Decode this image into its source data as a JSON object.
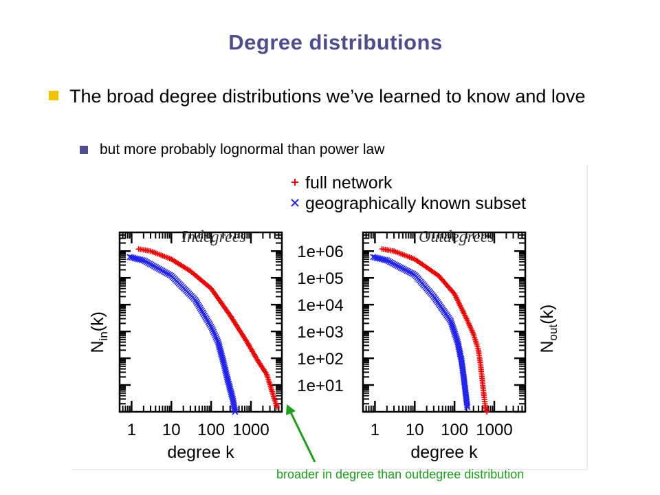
{
  "slide": {
    "title": "Degree distributions",
    "bullets": [
      {
        "level": 1,
        "text": "The broad degree distributions we’ve learned to know and love"
      },
      {
        "level": 2,
        "text": "but more probably lognormal than power law"
      }
    ],
    "annotation": "broader in degree than outdegree distribution",
    "colors": {
      "title": "#4d4d8e",
      "bullet1": "#f2c300",
      "bullet2": "#4d4d8e",
      "annotation": "#1aa01a"
    }
  },
  "chart_data": [
    {
      "type": "scatter",
      "title": "Indegrees",
      "xlabel": "degree k",
      "ylabel": "N",
      "ylabel_sub": "in",
      "ylabel_suffix": "(k)",
      "xscale": "log",
      "yscale": "log",
      "xlim": [
        0.5,
        6000
      ],
      "ylim": [
        1,
        5000000
      ],
      "xticks": [
        1,
        10,
        100,
        1000
      ],
      "xtick_labels": [
        "1",
        "10",
        "100",
        "1000"
      ],
      "yticks": [
        10,
        100,
        1000,
        10000,
        100000,
        1000000
      ],
      "ytick_labels": [
        "1e+01",
        "1e+02",
        "1e+03",
        "1e+04",
        "1e+05",
        "1e+06"
      ],
      "legend": "top",
      "series": [
        {
          "name": "full network",
          "marker": "+",
          "color": "#ee0000",
          "points": [
            [
              1.5,
              1200000
            ],
            [
              3,
              1000000
            ],
            [
              10,
              500000
            ],
            [
              30,
              180000
            ],
            [
              100,
              40000
            ],
            [
              300,
              4000
            ],
            [
              800,
              400
            ],
            [
              1500,
              80
            ],
            [
              2500,
              25
            ],
            [
              3500,
              5
            ],
            [
              4500,
              1.5
            ]
          ]
        },
        {
          "name": "geographically known subset",
          "marker": "x",
          "color": "#2222ee",
          "points": [
            [
              0.9,
              600000
            ],
            [
              2,
              450000
            ],
            [
              10,
              120000
            ],
            [
              40,
              15000
            ],
            [
              100,
              1500
            ],
            [
              150,
              400
            ],
            [
              200,
              80
            ],
            [
              250,
              20
            ],
            [
              350,
              3
            ],
            [
              400,
              1
            ]
          ]
        }
      ]
    },
    {
      "type": "scatter",
      "title": "Outdegrees",
      "xlabel": "degree k",
      "ylabel": "N",
      "ylabel_sub": "out",
      "ylabel_suffix": "(k)",
      "xscale": "log",
      "yscale": "log",
      "xlim": [
        0.5,
        6000
      ],
      "ylim": [
        1,
        5000000
      ],
      "xticks": [
        1,
        10,
        100,
        1000
      ],
      "xtick_labels": [
        "1",
        "10",
        "100",
        "1000"
      ],
      "yticks": [
        10,
        100,
        1000,
        10000,
        100000,
        1000000
      ],
      "ytick_labels": [
        "1e+01",
        "1e+02",
        "1e+03",
        "1e+04",
        "1e+05",
        "1e+06"
      ],
      "legend": "top",
      "series": [
        {
          "name": "full network",
          "marker": "+",
          "color": "#ee0000",
          "points": [
            [
              1.5,
              1200000
            ],
            [
              3,
              1000000
            ],
            [
              10,
              500000
            ],
            [
              40,
              120000
            ],
            [
              100,
              25000
            ],
            [
              200,
              3000
            ],
            [
              300,
              800
            ],
            [
              400,
              200
            ],
            [
              450,
              60
            ],
            [
              500,
              15
            ],
            [
              550,
              4
            ],
            [
              600,
              1.5
            ],
            [
              650,
              1
            ]
          ]
        },
        {
          "name": "geographically known subset",
          "marker": "x",
          "color": "#2222ee",
          "points": [
            [
              0.9,
              600000
            ],
            [
              2,
              450000
            ],
            [
              10,
              130000
            ],
            [
              30,
              20000
            ],
            [
              80,
              2500
            ],
            [
              120,
              400
            ],
            [
              150,
              80
            ],
            [
              170,
              20
            ],
            [
              190,
              5
            ],
            [
              210,
              1.5
            ]
          ]
        }
      ]
    }
  ]
}
